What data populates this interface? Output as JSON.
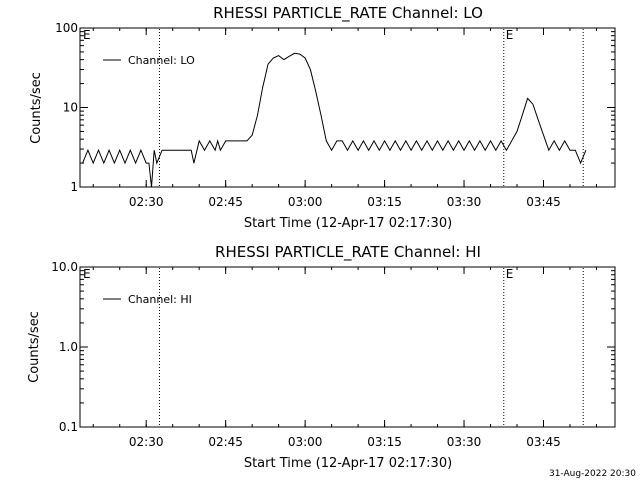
{
  "footer_text": "31-Aug-2022 20:30",
  "chart_data": [
    {
      "type": "line",
      "title": "RHESSI PARTICLE_RATE Channel: LO",
      "xlabel": "Start Time (12-Apr-17 02:17:30)",
      "ylabel": "Counts/sec",
      "y_scale": "log",
      "ylim": [
        1,
        100
      ],
      "y_tick_labels": [
        "1",
        "10",
        "100"
      ],
      "y_tick_values": [
        1,
        10,
        100
      ],
      "xlim": [
        "02:17:30",
        "03:58:30"
      ],
      "x_tick_labels": [
        "02:30",
        "02:45",
        "03:00",
        "03:15",
        "03:30",
        "03:45"
      ],
      "x_tick_values": [
        "02:30",
        "02:45",
        "03:00",
        "03:15",
        "03:30",
        "03:45"
      ],
      "markers": [
        {
          "time": "02:32:30",
          "label": ""
        },
        {
          "time": "03:37:30",
          "label": "E"
        },
        {
          "time": "03:52:30",
          "label": ""
        }
      ],
      "corner_label": "E",
      "legend": "top-left",
      "series": [
        {
          "name": "Channel: LO",
          "x": [
            "02:18:00",
            "02:19:00",
            "02:20:00",
            "02:21:00",
            "02:22:00",
            "02:23:00",
            "02:24:00",
            "02:25:00",
            "02:26:00",
            "02:27:00",
            "02:28:00",
            "02:29:00",
            "02:30:00",
            "02:30:30",
            "02:31:00",
            "02:31:30",
            "02:32:00",
            "02:33:00",
            "02:35:00",
            "02:37:00",
            "02:38:30",
            "02:39:00",
            "02:40:00",
            "02:41:00",
            "02:42:00",
            "02:43:00",
            "02:43:30",
            "02:44:00",
            "02:45:00",
            "02:46:00",
            "02:47:00",
            "02:48:00",
            "02:49:00",
            "02:50:00",
            "02:51:00",
            "02:52:00",
            "02:52:30",
            "02:53:00",
            "02:54:00",
            "02:55:00",
            "02:56:00",
            "02:57:00",
            "02:58:00",
            "02:59:00",
            "03:00:00",
            "03:01:00",
            "03:02:00",
            "03:03:00",
            "03:04:00",
            "03:05:00",
            "03:06:00",
            "03:07:00",
            "03:08:00",
            "03:09:00",
            "03:10:00",
            "03:11:00",
            "03:12:00",
            "03:13:00",
            "03:14:00",
            "03:15:00",
            "03:16:00",
            "03:17:00",
            "03:18:00",
            "03:19:00",
            "03:20:00",
            "03:21:00",
            "03:22:00",
            "03:23:00",
            "03:24:00",
            "03:25:00",
            "03:26:00",
            "03:27:00",
            "03:28:00",
            "03:29:00",
            "03:30:00",
            "03:31:00",
            "03:32:00",
            "03:33:00",
            "03:34:00",
            "03:35:00",
            "03:36:00",
            "03:37:00",
            "03:38:00",
            "03:39:00",
            "03:40:00",
            "03:41:00",
            "03:42:00",
            "03:43:00",
            "03:44:00",
            "03:45:00",
            "03:46:00",
            "03:47:00",
            "03:48:00",
            "03:49:00",
            "03:50:00",
            "03:51:00",
            "03:52:00",
            "03:53:00"
          ],
          "values": [
            2,
            2.9,
            2,
            2.9,
            2,
            2.9,
            2,
            2.9,
            2,
            2.9,
            2,
            2.9,
            2,
            2,
            1,
            2.9,
            2,
            2.9,
            2.9,
            2.9,
            2.9,
            2,
            3.8,
            2.9,
            3.8,
            2.9,
            3.8,
            2.9,
            3.8,
            3.8,
            3.8,
            3.8,
            3.8,
            4.5,
            8,
            18,
            25,
            35,
            42,
            45,
            40,
            44,
            48,
            47,
            42,
            30,
            16,
            8,
            3.8,
            2.9,
            3.8,
            3.8,
            2.9,
            3.8,
            2.9,
            3.8,
            2.9,
            3.8,
            2.9,
            3.8,
            2.9,
            3.8,
            2.9,
            3.8,
            2.9,
            3.8,
            2.9,
            3.8,
            2.9,
            3.8,
            2.9,
            3.8,
            2.9,
            3.8,
            2.9,
            3.8,
            2.9,
            3.8,
            2.9,
            3.8,
            2.9,
            3.8,
            2.9,
            3.8,
            5,
            8,
            13,
            11,
            7,
            4.5,
            2.9,
            3.8,
            2.9,
            3.8,
            2.9,
            2.9,
            2,
            2.9
          ]
        }
      ]
    },
    {
      "type": "line",
      "title": "RHESSI PARTICLE_RATE Channel: HI",
      "xlabel": "Start Time (12-Apr-17 02:17:30)",
      "ylabel": "Counts/sec",
      "y_scale": "log",
      "ylim": [
        0.1,
        10
      ],
      "y_tick_labels": [
        "0.1",
        "1.0",
        "10.0"
      ],
      "y_tick_values": [
        0.1,
        1,
        10
      ],
      "xlim": [
        "02:17:30",
        "03:58:30"
      ],
      "x_tick_labels": [
        "02:30",
        "02:45",
        "03:00",
        "03:15",
        "03:30",
        "03:45"
      ],
      "x_tick_values": [
        "02:30",
        "02:45",
        "03:00",
        "03:15",
        "03:30",
        "03:45"
      ],
      "markers": [
        {
          "time": "02:32:30",
          "label": ""
        },
        {
          "time": "03:37:30",
          "label": "E"
        },
        {
          "time": "03:52:30",
          "label": ""
        }
      ],
      "corner_label": "E",
      "legend": "top-left",
      "series": [
        {
          "name": "Channel: HI",
          "x": [],
          "values": []
        }
      ]
    }
  ]
}
